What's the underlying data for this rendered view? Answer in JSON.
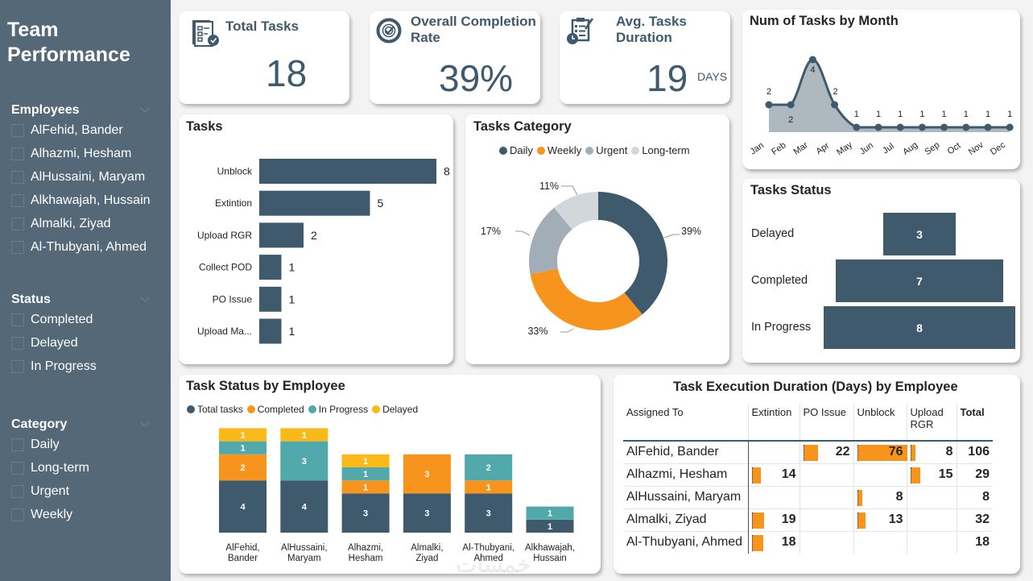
{
  "sidebar": {
    "title_line1": "Team",
    "title_line2": "Performance",
    "slicers": [
      {
        "title": "Employees",
        "items": [
          "AlFehid, Bander",
          "Alhazmi, Hesham",
          "AlHussaini, Maryam",
          "Alkhawajah, Hussain",
          "Almalki, Ziyad",
          "Al-Thubyani, Ahmed"
        ]
      },
      {
        "title": "Status",
        "items": [
          "Completed",
          "Delayed",
          "In Progress"
        ]
      },
      {
        "title": "Category",
        "items": [
          "Daily",
          "Long-term",
          "Urgent",
          "Weekly"
        ]
      }
    ]
  },
  "kpis": {
    "total_tasks": {
      "title": "Total Tasks",
      "value": "18",
      "icon": "checklist-icon"
    },
    "completion_rate": {
      "title_line1": "Overall Completion",
      "title_line2": "Rate",
      "value": "39%",
      "icon": "target-check-icon"
    },
    "avg_duration": {
      "title_line1": "Avg. Tasks",
      "title_line2": "Duration",
      "value": "19",
      "unit": "DAYS",
      "icon": "clipboard-clock-icon"
    }
  },
  "colors": {
    "primary": "#3f5a6c",
    "orange": "#f7941d",
    "teal": "#52a9ab",
    "yellow": "#fbb819",
    "urgent": "#a1aeb7",
    "longterm": "#d1d7db",
    "area": "#aeb8bf"
  },
  "chart_data": [
    {
      "id": "tasks_by_month",
      "type": "area",
      "title": "Num of Tasks by Month",
      "categories": [
        "Jan",
        "Feb",
        "Mar",
        "Apr",
        "May",
        "Jun",
        "Jul",
        "Aug",
        "Sep",
        "Oct",
        "Nov",
        "Dec"
      ],
      "values": [
        2,
        2,
        4,
        2,
        1,
        1,
        1,
        1,
        1,
        1,
        1,
        1
      ],
      "ylim": [
        0,
        4
      ],
      "grid": false
    },
    {
      "id": "tasks",
      "type": "bar",
      "orientation": "horizontal",
      "title": "Tasks",
      "categories": [
        "Unblock",
        "Extintion",
        "Upload RGR",
        "Collect POD",
        "PO Issue",
        "Upload Ma..."
      ],
      "values": [
        8,
        5,
        2,
        1,
        1,
        1
      ],
      "xlim": [
        0,
        8
      ]
    },
    {
      "id": "tasks_category",
      "type": "pie",
      "donut": true,
      "title": "Tasks Category",
      "legend": "top",
      "labels": [
        "Daily",
        "Weekly",
        "Urgent",
        "Long-term"
      ],
      "values": [
        39,
        33,
        17,
        11
      ],
      "value_labels": [
        "39%",
        "33%",
        "17%",
        "11%"
      ]
    },
    {
      "id": "tasks_status",
      "type": "bar",
      "orientation": "horizontal-funnel",
      "title": "Tasks Status",
      "categories": [
        "Delayed",
        "Completed",
        "In Progress"
      ],
      "values": [
        3,
        7,
        8
      ]
    },
    {
      "id": "task_status_by_employee",
      "type": "bar",
      "stacked": true,
      "title": "Task Status by Employee",
      "legend": "top-left",
      "categories": [
        "AlFehid, Bander",
        "AlHussaini, Maryam",
        "Alhazmi, Hesham",
        "Almalki, Ziyad",
        "Al-Thubyani, Ahmed",
        "Alkhawajah, Hussain"
      ],
      "category_lines": [
        [
          "AlFehid,",
          "Bander"
        ],
        [
          "AlHussaini,",
          "Maryam"
        ],
        [
          "Alhazmi,",
          "Hesham"
        ],
        [
          "Almalki,",
          "Ziyad"
        ],
        [
          "Al-Thubyani,",
          "Ahmed"
        ],
        [
          "Alkhawajah,",
          "Hussain"
        ]
      ],
      "series": [
        {
          "name": "Total tasks",
          "values": [
            4,
            4,
            3,
            3,
            3,
            1
          ]
        },
        {
          "name": "Completed",
          "values": [
            2,
            0,
            1,
            3,
            1,
            0
          ]
        },
        {
          "name": "In Progress",
          "values": [
            1,
            3,
            1,
            0,
            2,
            1
          ]
        },
        {
          "name": "Delayed",
          "values": [
            1,
            1,
            1,
            0,
            0,
            0
          ]
        }
      ]
    },
    {
      "id": "duration_matrix",
      "type": "table",
      "title": "Task Execution Duration (Days) by Employee",
      "columns": [
        "Assigned To",
        "Extintion",
        "PO Issue",
        "Unblock",
        "Upload RGR",
        "Total"
      ],
      "rows": [
        {
          "name": "AlFehid, Bander",
          "values": [
            null,
            22,
            76,
            8
          ],
          "total": 106
        },
        {
          "name": "Alhazmi, Hesham",
          "values": [
            14,
            null,
            null,
            15
          ],
          "total": 29
        },
        {
          "name": "AlHussaini, Maryam",
          "values": [
            null,
            null,
            8,
            null
          ],
          "total": 8
        },
        {
          "name": "Almalki, Ziyad",
          "values": [
            19,
            null,
            13,
            null
          ],
          "total": 32
        },
        {
          "name": "Al-Thubyani, Ahmed",
          "values": [
            18,
            null,
            null,
            null
          ],
          "total": 18
        }
      ],
      "max": 76
    }
  ]
}
